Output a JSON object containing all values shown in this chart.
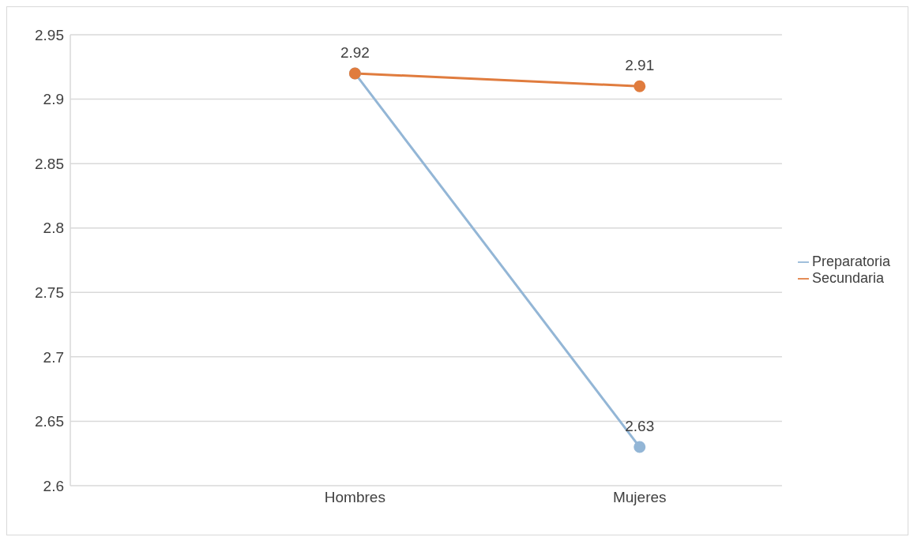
{
  "chart_data": {
    "type": "line",
    "categories": [
      null,
      "Hombres",
      "Mujeres"
    ],
    "series": [
      {
        "name": "Preparatoria",
        "color": "#93b6d6",
        "values": [
          null,
          2.92,
          2.63
        ],
        "value_labels": [
          null,
          null,
          "2.63"
        ]
      },
      {
        "name": "Secundaria",
        "color": "#e07c3e",
        "values": [
          null,
          2.92,
          2.91
        ],
        "value_labels": [
          null,
          "2.92",
          "2.91"
        ]
      }
    ],
    "ylim": [
      2.6,
      2.95
    ],
    "yticks": [
      2.6,
      2.65,
      2.7,
      2.75,
      2.8,
      2.85,
      2.9,
      2.95
    ],
    "grid": "y",
    "legend": "right",
    "marker": "circle",
    "line_style": "solid"
  }
}
